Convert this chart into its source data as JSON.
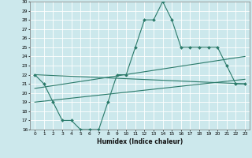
{
  "xlabel": "Humidex (Indice chaleur)",
  "bg_color": "#cce8ec",
  "grid_color": "#ffffff",
  "line_color": "#2a7a6a",
  "xlim": [
    -0.5,
    23.5
  ],
  "ylim": [
    16,
    30
  ],
  "xticks": [
    0,
    1,
    2,
    3,
    4,
    5,
    6,
    7,
    8,
    9,
    10,
    11,
    12,
    13,
    14,
    15,
    16,
    17,
    18,
    19,
    20,
    21,
    22,
    23
  ],
  "yticks": [
    16,
    17,
    18,
    19,
    20,
    21,
    22,
    23,
    24,
    25,
    26,
    27,
    28,
    29,
    30
  ],
  "main_x": [
    0,
    1,
    2,
    3,
    4,
    5,
    6,
    7,
    8,
    9,
    10,
    11,
    12,
    13,
    14,
    15,
    16,
    17,
    18,
    19,
    20,
    21,
    22,
    23
  ],
  "main_y": [
    22,
    21,
    19,
    17,
    17,
    16,
    16,
    16,
    19,
    22,
    22,
    25,
    28,
    28,
    30,
    28,
    25,
    25,
    25,
    25,
    25,
    23,
    21,
    21
  ],
  "trend1_x": [
    0,
    23
  ],
  "trend1_y": [
    22.0,
    21.0
  ],
  "trend2_x": [
    0,
    23
  ],
  "trend2_y": [
    20.5,
    24.0
  ],
  "trend3_x": [
    0,
    23
  ],
  "trend3_y": [
    19.0,
    21.5
  ]
}
